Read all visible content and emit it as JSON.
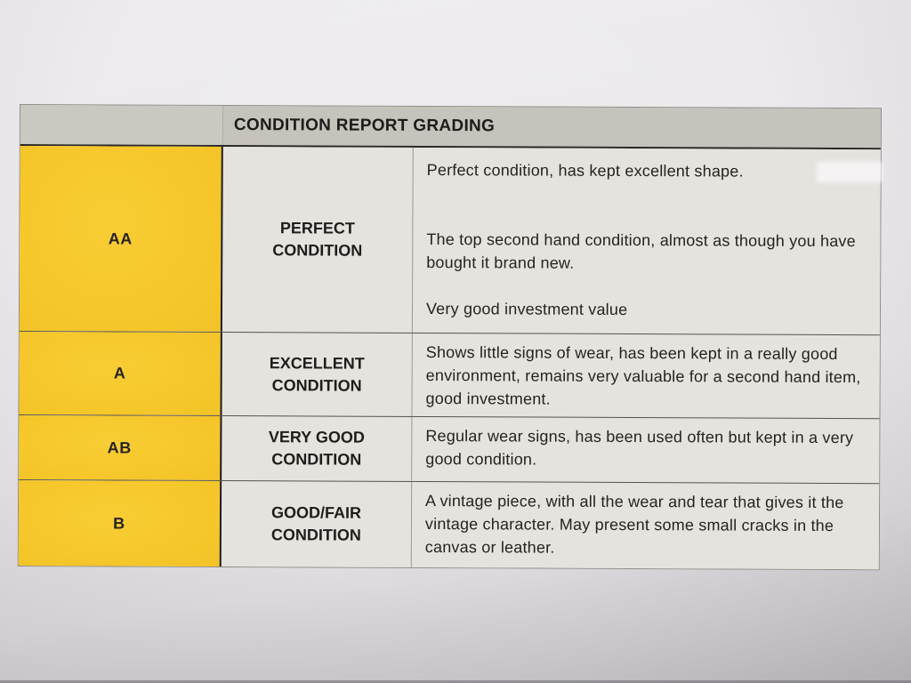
{
  "document": {
    "title": "CONDITION REPORT GRADING",
    "rows": [
      {
        "grade": "AA",
        "condition_lines": [
          "PERFECT",
          "CONDITION"
        ],
        "description": [
          "Perfect condition, has kept excellent shape.",
          "The top second hand condition, almost as though you have bought it brand new.",
          "Very good investment value"
        ]
      },
      {
        "grade": "A",
        "condition_lines": [
          "EXCELLENT",
          "CONDITION"
        ],
        "description": [
          "Shows little signs of wear, has been kept in a really good environment, remains very valuable for a second hand item, good investment."
        ]
      },
      {
        "grade": "AB",
        "condition_lines": [
          "VERY GOOD",
          "CONDITION"
        ],
        "description": [
          "Regular wear signs, has been used often but kept in a very good condition."
        ]
      },
      {
        "grade": "B",
        "condition_lines": [
          "GOOD/FAIR",
          "CONDITION"
        ],
        "description": [
          "A vintage piece, with all the wear and tear that gives it the vintage character. May present some small cracks in the canvas or leather."
        ]
      }
    ],
    "colors": {
      "grade_column_yellow": "#f6c82c",
      "header_gray": "#c6c2bc",
      "cell_gray": "#e6e3df",
      "paper": "#eae8eb",
      "text": "#232220"
    }
  }
}
